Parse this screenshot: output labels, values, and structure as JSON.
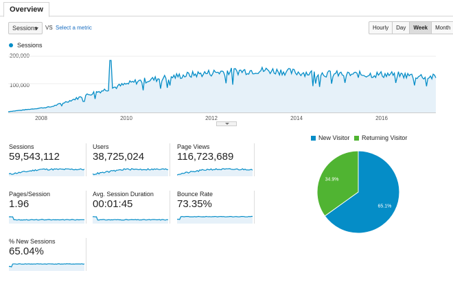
{
  "tabs": {
    "overview": "Overview"
  },
  "toolbar": {
    "metric": "Sessions",
    "vs": "VS",
    "select_metric": "Select a metric",
    "ranges": [
      "Hourly",
      "Day",
      "Week",
      "Month"
    ],
    "active_range": "Week"
  },
  "chart_data": {
    "type": "area",
    "series": [
      {
        "name": "Sessions",
        "x": [
          "2007",
          "2008",
          "2009",
          "2010",
          "2011",
          "2012",
          "2013",
          "2014",
          "2015",
          "2016",
          "2017"
        ],
        "values": [
          3000,
          20000,
          70000,
          110000,
          130000,
          145000,
          150000,
          140000,
          135000,
          135000,
          125000
        ]
      }
    ],
    "x_ticks": [
      "2008",
      "2010",
      "2012",
      "2014",
      "2016"
    ],
    "y_ticks": [
      "200,000",
      "100,000"
    ],
    "ylim": [
      0,
      200000
    ],
    "color": "#058dc7",
    "fill": "#e6f1f9",
    "grid": true
  },
  "metrics": [
    {
      "label": "Sessions",
      "value": "59,543,112"
    },
    {
      "label": "Users",
      "value": "38,725,024"
    },
    {
      "label": "Page Views",
      "value": "116,723,689"
    },
    {
      "label": "Pages/Session",
      "value": "1.96"
    },
    {
      "label": "Avg. Session Duration",
      "value": "00:01:45"
    },
    {
      "label": "Bounce Rate",
      "value": "73.35%"
    },
    {
      "label": "% New Sessions",
      "value": "65.04%"
    }
  ],
  "pie": {
    "slices": [
      {
        "label": "New Visitor",
        "value": 65.1,
        "display": "65.1%",
        "color": "#058dc7"
      },
      {
        "label": "Returning Visitor",
        "value": 34.9,
        "display": "34.9%",
        "color": "#50b432"
      }
    ]
  }
}
